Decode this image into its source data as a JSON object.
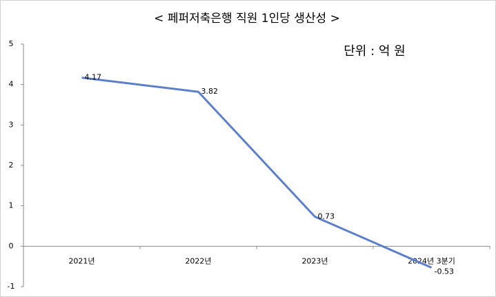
{
  "chart_data": {
    "type": "line",
    "title": "< 페퍼저축은행 직원 1인당 생산성 >",
    "annotation": "단위 : 억 원",
    "categories": [
      "2021년",
      "2022년",
      "2023년",
      "2024년 3분기"
    ],
    "values": [
      4.17,
      3.82,
      0.73,
      -0.53
    ],
    "color": "#5b7fcb",
    "ylim": [
      -1,
      5
    ],
    "yticks": [
      -1,
      0,
      1,
      2,
      3,
      4,
      5
    ]
  }
}
